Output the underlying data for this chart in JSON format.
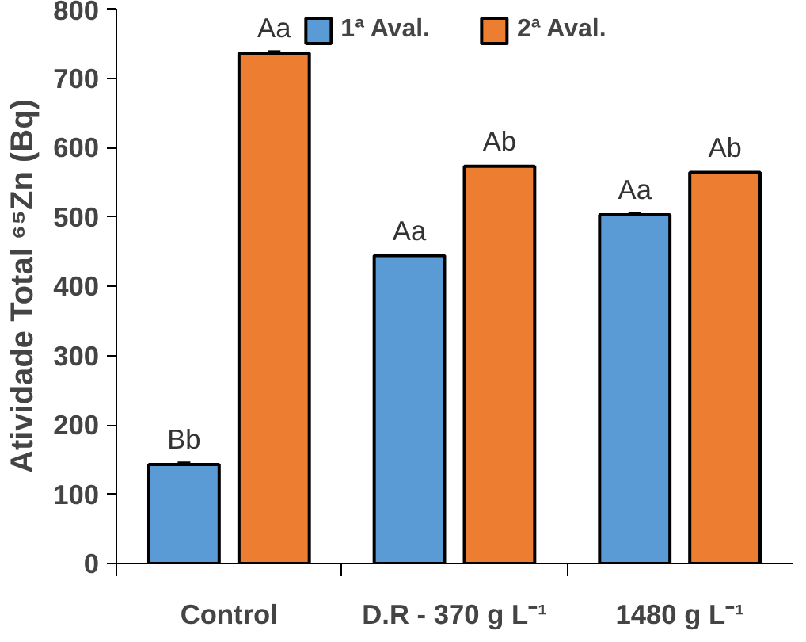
{
  "chart_data": {
    "type": "bar",
    "ylabel": "Atividade Total ⁶⁵Zn (Bq)",
    "categories": [
      "Control",
      "D.R - 370 g L⁻¹",
      "1480 g L⁻¹"
    ],
    "series": [
      {
        "name": "1ª Aval.",
        "color": "#5b9bd5",
        "values": [
          143,
          444,
          503
        ],
        "errors": [
          3,
          null,
          3
        ],
        "value_labels": [
          "Bb",
          "Aa",
          "Aa"
        ]
      },
      {
        "name": "2ª Aval.",
        "color": "#ed7d31",
        "values": [
          736,
          573,
          564
        ],
        "errors": [
          3,
          null,
          null
        ],
        "value_labels": [
          "Aa",
          "Ab",
          "Ab"
        ]
      }
    ],
    "ylim": [
      0,
      800
    ],
    "yticks": [
      0,
      100,
      200,
      300,
      400,
      500,
      600,
      700,
      800
    ],
    "grid": false,
    "legend": "top"
  }
}
